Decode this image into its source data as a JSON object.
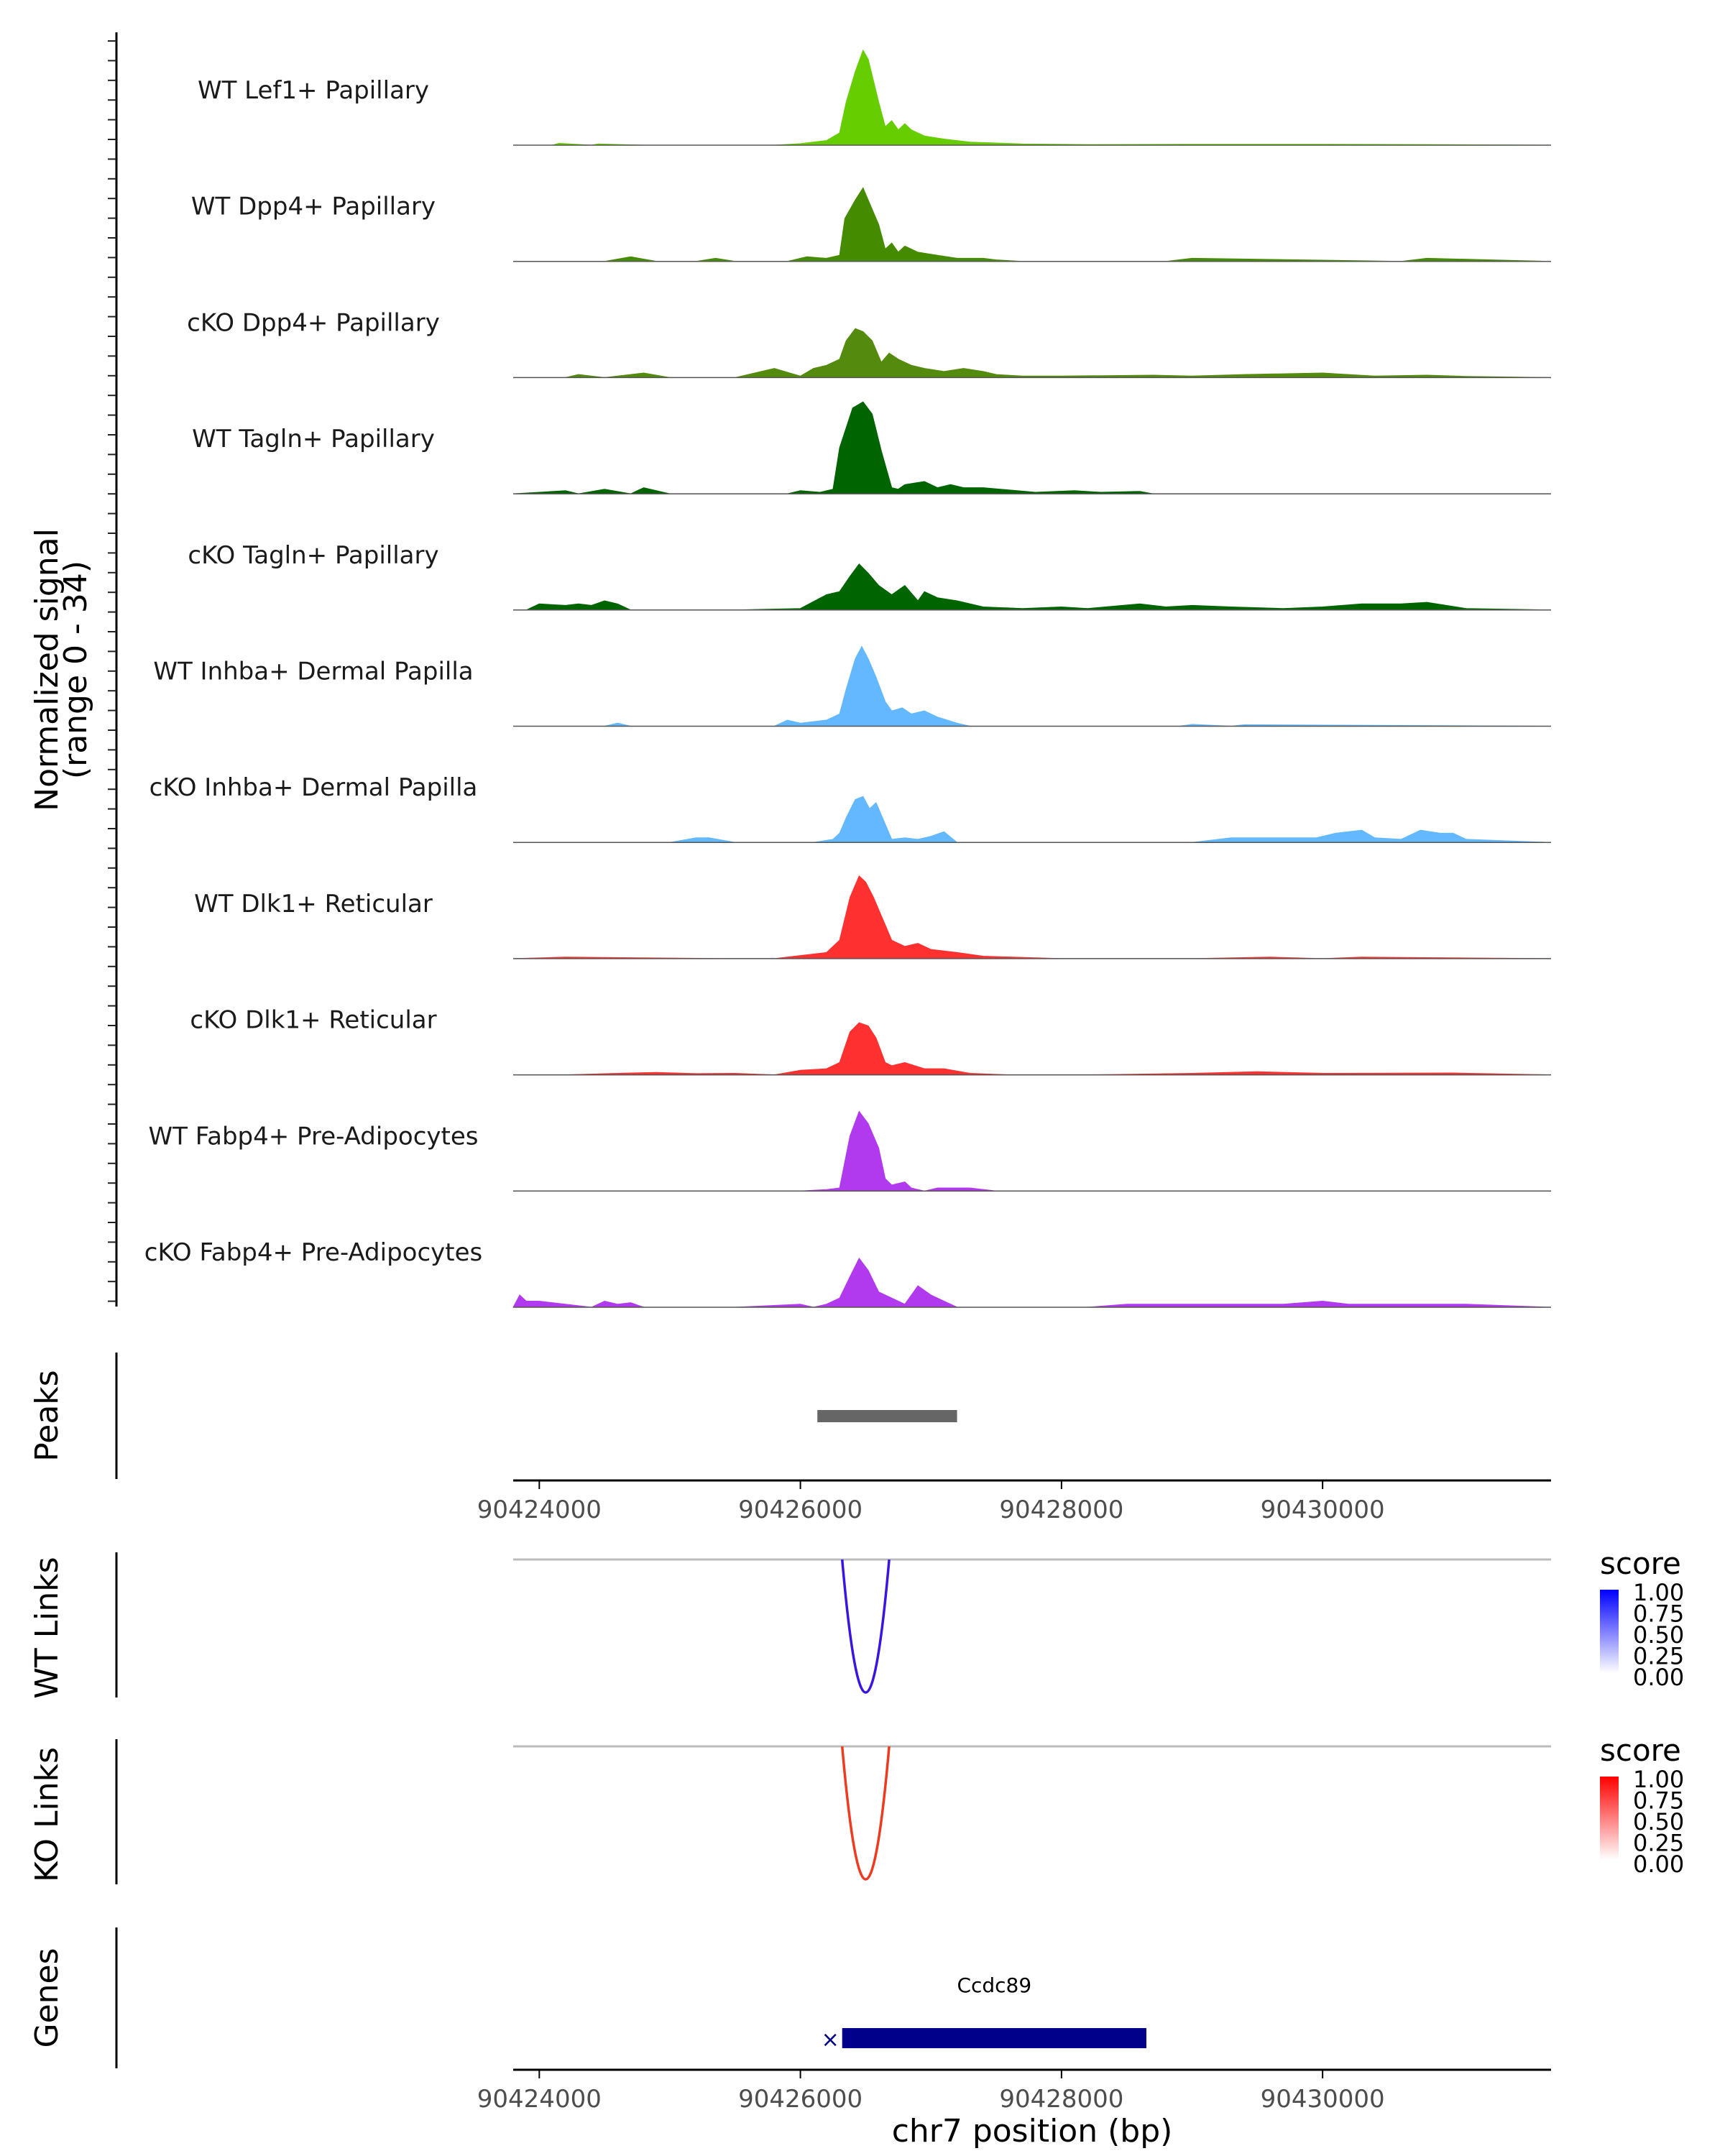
{
  "chart_data": {
    "type": "area",
    "title": "",
    "ylabel_main": "Normalized signal",
    "ylabel_range": "(range 0 - 34)",
    "ylim": [
      0,
      34
    ],
    "xlim": [
      90423800,
      90431750
    ],
    "xlabel": "chr7 position (bp)",
    "xticks": [
      90424000,
      90426000,
      90428000,
      90430000
    ],
    "xtick_labels": [
      "90424000",
      "90426000",
      "90428000",
      "90430000"
    ],
    "tracks": [
      {
        "name": "WT Lef1+ Papillary",
        "color": "#66CD00",
        "x": [
          90423800,
          90424100,
          90424150,
          90424400,
          90424450,
          90424800,
          90425800,
          90426000,
          90426200,
          90426300,
          90426350,
          90426420,
          90426480,
          90426520,
          90426600,
          90426650,
          90426700,
          90426750,
          90426800,
          90426850,
          90426950,
          90427100,
          90427300,
          90427700,
          90428200,
          90429000,
          90430000,
          90430800,
          90431750
        ],
        "values": [
          0,
          0,
          0.6,
          0,
          0.4,
          0,
          0,
          0.5,
          1.5,
          4,
          14,
          24,
          31,
          28,
          14,
          6,
          8,
          5,
          7,
          5,
          3,
          2,
          1,
          0.4,
          0.2,
          0.3,
          0.3,
          0.2,
          0
        ]
      },
      {
        "name": "WT Dpp4+ Papillary",
        "color": "#458B00",
        "x": [
          90423800,
          90424500,
          90424700,
          90424900,
          90425200,
          90425350,
          90425500,
          90425900,
          90426050,
          90426200,
          90426300,
          90426340,
          90426420,
          90426480,
          90426520,
          90426600,
          90426650,
          90426700,
          90426750,
          90426800,
          90426900,
          90427050,
          90427200,
          90427400,
          90427500,
          90427700,
          90428800,
          90429000,
          90430600,
          90430800,
          90431750
        ],
        "values": [
          0,
          0,
          1.5,
          0,
          0,
          1,
          0,
          0,
          1.5,
          1,
          2,
          14,
          20,
          24,
          20,
          12,
          4,
          6,
          3,
          5,
          3,
          2,
          1,
          1,
          0.5,
          0,
          0,
          1,
          0,
          1,
          0
        ]
      },
      {
        "name": "cKO Dpp4+ Papillary",
        "color": "#548B0F",
        "x": [
          90423800,
          90424200,
          90424300,
          90424500,
          90424700,
          90424800,
          90425000,
          90425500,
          90425800,
          90426000,
          90426100,
          90426200,
          90426300,
          90426350,
          90426420,
          90426480,
          90426550,
          90426620,
          90426680,
          90426750,
          90426850,
          90426950,
          90427100,
          90427250,
          90427400,
          90427500,
          90427700,
          90428000,
          90428700,
          90429000,
          90429400,
          90430000,
          90430400,
          90430800,
          90431100,
          90431750
        ],
        "values": [
          0,
          0,
          1,
          0,
          1,
          1.5,
          0,
          0,
          3,
          0.5,
          3,
          4,
          6,
          12,
          16,
          15,
          12,
          5,
          8,
          6,
          4,
          3,
          2,
          3,
          2,
          1,
          0.5,
          0.5,
          0.8,
          0.5,
          1,
          1.5,
          0.5,
          0.8,
          0.4,
          0
        ]
      },
      {
        "name": "WT Tagln+ Papillary",
        "color": "#006400",
        "x": [
          90423800,
          90424200,
          90424300,
          90424500,
          90424700,
          90424800,
          90425000,
          90425500,
          90425900,
          90426000,
          90426150,
          90426250,
          90426300,
          90426400,
          90426480,
          90426550,
          90426620,
          90426700,
          90426750,
          90426800,
          90426950,
          90427050,
          90427150,
          90427250,
          90427400,
          90427800,
          90428100,
          90428300,
          90428600,
          90428700,
          90431750
        ],
        "values": [
          0,
          1,
          0,
          1.5,
          0,
          2,
          0,
          0,
          0,
          1,
          0.5,
          1.5,
          15,
          28,
          30,
          26,
          14,
          2,
          1.5,
          3,
          4,
          2,
          3,
          2,
          2,
          0.5,
          1,
          0.5,
          0.8,
          0,
          0
        ]
      },
      {
        "name": "cKO Tagln+ Papillary",
        "color": "#006400",
        "x": [
          90423800,
          90423900,
          90424000,
          90424200,
          90424300,
          90424400,
          90424500,
          90424600,
          90424700,
          90425000,
          90425500,
          90426000,
          90426200,
          90426300,
          90426380,
          90426450,
          90426520,
          90426600,
          90426700,
          90426800,
          90426900,
          90426950,
          90427050,
          90427200,
          90427400,
          90427700,
          90428000,
          90428200,
          90428600,
          90428800,
          90429000,
          90429300,
          90429700,
          90430000,
          90430300,
          90430600,
          90430800,
          90431100,
          90431750
        ],
        "values": [
          0,
          0,
          2,
          1.5,
          2,
          1.5,
          3,
          2,
          0,
          0,
          0,
          0.5,
          5,
          6,
          11,
          15,
          12,
          8,
          5,
          8,
          3,
          6,
          4,
          3,
          1,
          0.5,
          1,
          0.5,
          2,
          1,
          1.5,
          1,
          0.5,
          1,
          2,
          2,
          2.5,
          0.5,
          0
        ]
      },
      {
        "name": "WT Inhba+ Dermal Papilla",
        "color": "#63B8FF",
        "x": [
          90423800,
          90424500,
          90424600,
          90424700,
          90425500,
          90425800,
          90425900,
          90426000,
          90426200,
          90426300,
          90426350,
          90426420,
          90426470,
          90426520,
          90426580,
          90426650,
          90426700,
          90426780,
          90426850,
          90426950,
          90427050,
          90427200,
          90427300,
          90428500,
          90428900,
          90429000,
          90429300,
          90429400,
          90431750
        ],
        "values": [
          0,
          0,
          1,
          0,
          0,
          0,
          2,
          1,
          2,
          4,
          12,
          22,
          26,
          22,
          16,
          8,
          5,
          6,
          4,
          5,
          3,
          1,
          0,
          0,
          0,
          0.6,
          0,
          0.5,
          0
        ]
      },
      {
        "name": "cKO Inhba+ Dermal Papilla",
        "color": "#63B8FF",
        "x": [
          90423800,
          90425000,
          90425200,
          90425300,
          90425500,
          90426100,
          90426250,
          90426300,
          90426350,
          90426420,
          90426480,
          90426530,
          90426580,
          90426630,
          90426700,
          90426800,
          90426900,
          90427000,
          90427100,
          90427200,
          90427500,
          90429000,
          90429300,
          90429600,
          90429950,
          90430100,
          90430300,
          90430400,
          90430600,
          90430750,
          90430900,
          90431000,
          90431100,
          90431750
        ],
        "values": [
          0,
          0,
          1.5,
          1.5,
          0,
          0,
          1,
          3,
          8,
          14,
          15,
          11,
          13,
          8,
          1,
          1.5,
          1,
          2,
          3.5,
          0,
          0,
          0,
          1.5,
          1.5,
          1.5,
          3,
          4,
          1.5,
          1,
          4,
          3,
          3,
          1,
          0
        ]
      },
      {
        "name": "WT Dlk1+ Reticular",
        "color": "#FF3030",
        "x": [
          90423800,
          90424200,
          90425500,
          90425800,
          90426000,
          90426200,
          90426300,
          90426380,
          90426450,
          90426500,
          90426560,
          90426620,
          90426700,
          90426800,
          90426900,
          90427000,
          90427200,
          90427400,
          90428000,
          90429000,
          90429600,
          90430000,
          90430300,
          90431750
        ],
        "values": [
          0,
          0.5,
          0,
          0,
          1,
          2,
          6,
          20,
          27,
          25,
          20,
          14,
          6,
          4,
          5,
          3,
          2,
          0.8,
          0,
          0,
          0.5,
          0,
          0.5,
          0
        ]
      },
      {
        "name": "cKO Dlk1+ Reticular",
        "color": "#FF3030",
        "x": [
          90423800,
          90424200,
          90424600,
          90424900,
          90425200,
          90425500,
          90425800,
          90426000,
          90426200,
          90426300,
          90426380,
          90426450,
          90426520,
          90426580,
          90426650,
          90426700,
          90426800,
          90426950,
          90427100,
          90427300,
          90427600,
          90428200,
          90429000,
          90429500,
          90430000,
          90431000,
          90431750
        ],
        "values": [
          0,
          0,
          0.5,
          0.8,
          0.4,
          0.5,
          0,
          1.5,
          2,
          4,
          14,
          17,
          16,
          12,
          4,
          3,
          4,
          2,
          2,
          0.5,
          0,
          0,
          0.5,
          1,
          0.5,
          0.6,
          0
        ]
      },
      {
        "name": "WT Fabp4+ Pre-Adipocytes",
        "color": "#B23AEE",
        "x": [
          90423800,
          90426000,
          90426200,
          90426300,
          90426380,
          90426450,
          90426520,
          90426600,
          90426650,
          90426700,
          90426800,
          90426850,
          90426950,
          90427050,
          90427300,
          90427500,
          90431750
        ],
        "values": [
          0,
          0,
          0.5,
          1,
          18,
          26,
          22,
          14,
          4,
          2,
          3,
          1,
          0,
          1,
          1,
          0,
          0
        ]
      },
      {
        "name": "cKO Fabp4+ Pre-Adipocytes",
        "color": "#B23AEE",
        "x": [
          90423800,
          90423850,
          90423900,
          90424000,
          90424200,
          90424400,
          90424500,
          90424600,
          90424700,
          90424800,
          90425000,
          90425500,
          90426000,
          90426100,
          90426200,
          90426300,
          90426380,
          90426450,
          90426520,
          90426600,
          90426700,
          90426800,
          90426900,
          90427000,
          90427100,
          90427200,
          90427500,
          90428200,
          90428500,
          90428700,
          90428900,
          90429000,
          90429300,
          90429700,
          90430000,
          90430200,
          90430600,
          90430800,
          90431100,
          90431750
        ],
        "values": [
          0,
          4,
          2,
          2,
          1,
          0,
          2,
          1,
          1.5,
          0,
          0,
          0,
          1,
          0,
          1,
          3,
          10,
          16,
          12,
          5,
          3,
          1,
          7,
          4,
          2,
          0,
          0,
          0,
          1,
          1,
          1,
          1,
          1,
          1,
          2,
          1,
          1,
          1,
          1,
          0
        ]
      }
    ],
    "peaks": {
      "label": "Peaks",
      "start": 90426130,
      "end": 90427200
    },
    "links": [
      {
        "label": "WT Links",
        "color": "#3A14E0",
        "start": 90426320,
        "end": 90426680
      },
      {
        "label": "KO Links",
        "color": "#EE3A1E",
        "start": 90426320,
        "end": 90426680
      }
    ],
    "legends": [
      {
        "title": "score",
        "ticks": [
          "1.00",
          "0.75",
          "0.50",
          "0.25",
          "0.00"
        ],
        "color": "#0000FF"
      },
      {
        "title": "score",
        "ticks": [
          "1.00",
          "0.75",
          "0.50",
          "0.25",
          "0.00"
        ],
        "color": "#FF0000"
      }
    ],
    "genes": {
      "label": "Genes",
      "name": "Ccdc89",
      "start": 90426320,
      "end": 90428650,
      "strand": "-",
      "color": "#00008B"
    }
  }
}
